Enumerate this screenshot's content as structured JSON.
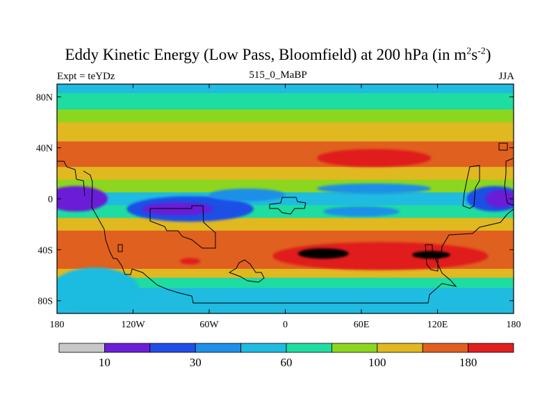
{
  "chart_data": {
    "type": "heatmap",
    "title_prefix": "Eddy Kinetic Energy (Low Pass, Bloomfield) at 200 hPa (in m",
    "title_units_sup1": "2",
    "title_units_mid": "s",
    "title_units_sup2": "-2",
    "title_suffix": ")",
    "left_label": "Expt = teYDz",
    "center_label": "515_0_MaBP",
    "right_label": "JJA",
    "x_range": [
      -180,
      180
    ],
    "y_range": [
      -90,
      90
    ],
    "x_ticks": [
      {
        "value": -180,
        "label": "180"
      },
      {
        "value": -120,
        "label": "120W"
      },
      {
        "value": -60,
        "label": "60W"
      },
      {
        "value": 0,
        "label": "0"
      },
      {
        "value": 60,
        "label": "60E"
      },
      {
        "value": 120,
        "label": "120E"
      },
      {
        "value": 180,
        "label": "180"
      }
    ],
    "y_ticks": [
      {
        "value": 80,
        "label": "80N"
      },
      {
        "value": 40,
        "label": "40N"
      },
      {
        "value": 0,
        "label": "0"
      },
      {
        "value": -40,
        "label": "40S"
      },
      {
        "value": -80,
        "label": "80S"
      }
    ],
    "colorbar": {
      "levels": [
        10,
        20,
        30,
        45,
        60,
        80,
        100,
        140,
        180
      ],
      "labels": [
        {
          "after_box": 1,
          "text": "10"
        },
        {
          "after_box": 3,
          "text": "30"
        },
        {
          "after_box": 5,
          "text": "60"
        },
        {
          "after_box": 7,
          "text": "100"
        },
        {
          "after_box": 9,
          "text": "180"
        }
      ],
      "colors": [
        "#c8c8c8",
        "#6a1fd6",
        "#1f4fe6",
        "#1f8fe8",
        "#1fbbe0",
        "#1fdca0",
        "#8cd61f",
        "#e0b81f",
        "#e0601f",
        "#e01f1f"
      ]
    },
    "zonal_bands": [
      {
        "lat_top": 90,
        "lat_bottom": 83,
        "level": 4
      },
      {
        "lat_top": 83,
        "lat_bottom": 70,
        "level": 5
      },
      {
        "lat_top": 70,
        "lat_bottom": 60,
        "level": 6
      },
      {
        "lat_top": 60,
        "lat_bottom": 45,
        "level": 7
      },
      {
        "lat_top": 45,
        "lat_bottom": 25,
        "level": 8
      },
      {
        "lat_top": 25,
        "lat_bottom": 15,
        "level": 7
      },
      {
        "lat_top": 15,
        "lat_bottom": 5,
        "level": 6
      },
      {
        "lat_top": 5,
        "lat_bottom": -5,
        "level": 4
      },
      {
        "lat_top": -5,
        "lat_bottom": -15,
        "level": 5
      },
      {
        "lat_top": -15,
        "lat_bottom": -25,
        "level": 7
      },
      {
        "lat_top": -25,
        "lat_bottom": -35,
        "level": 8
      },
      {
        "lat_top": -35,
        "lat_bottom": -55,
        "level": 8
      },
      {
        "lat_top": -55,
        "lat_bottom": -62,
        "level": 7
      },
      {
        "lat_top": -62,
        "lat_bottom": -70,
        "level": 5
      },
      {
        "lat_top": -70,
        "lat_bottom": -90,
        "level": 4
      }
    ],
    "blobs": [
      {
        "lon": 70,
        "lat": 32,
        "rlon": 45,
        "rlat": 7,
        "level": 9
      },
      {
        "lon": -165,
        "lat": 0,
        "rlon": 25,
        "rlat": 10,
        "level": 1
      },
      {
        "lon": -75,
        "lat": -8,
        "rlon": 50,
        "rlat": 10,
        "level": 2
      },
      {
        "lon": -85,
        "lat": -8,
        "rlon": 28,
        "rlat": 5,
        "level": 1
      },
      {
        "lon": -30,
        "lat": 3,
        "rlon": 30,
        "rlat": 5,
        "level": 3
      },
      {
        "lon": 70,
        "lat": 8,
        "rlon": 45,
        "rlat": 4,
        "level": 3
      },
      {
        "lon": 60,
        "lat": -10,
        "rlon": 30,
        "rlat": 4,
        "level": 3
      },
      {
        "lon": 165,
        "lat": 0,
        "rlon": 22,
        "rlat": 10,
        "level": 2
      },
      {
        "lon": 170,
        "lat": 0,
        "rlon": 12,
        "rlat": 7,
        "level": 1
      },
      {
        "lon": 75,
        "lat": -45,
        "rlon": 85,
        "rlat": 11,
        "level": 9
      },
      {
        "lon": 30,
        "lat": -43,
        "rlon": 20,
        "rlat": 4,
        "level": 10
      },
      {
        "lon": 115,
        "lat": -44,
        "rlon": 15,
        "rlat": 3,
        "level": 10
      },
      {
        "lon": -75,
        "lat": -49,
        "rlon": 8,
        "rlat": 2.5,
        "level": 9
      },
      {
        "lon": -150,
        "lat": -72,
        "rlon": 35,
        "rlat": 18,
        "level": 4
      }
    ]
  }
}
